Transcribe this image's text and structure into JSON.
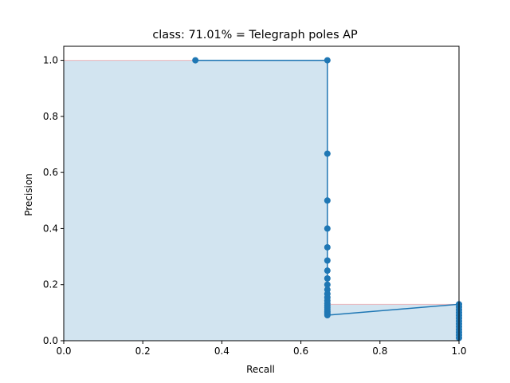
{
  "chart_data": {
    "type": "line",
    "title": "class: 71.01% = Telegraph poles AP",
    "xlabel": "Recall",
    "ylabel": "Precision",
    "xlim": [
      0,
      1
    ],
    "ylim": [
      0,
      1.05
    ],
    "xticks": [
      "0.0",
      "0.2",
      "0.4",
      "0.6",
      "0.8",
      "1.0"
    ],
    "yticks": [
      "0.0",
      "0.2",
      "0.4",
      "0.6",
      "0.8",
      "1.0"
    ],
    "grid": false,
    "legend": "none",
    "series": [
      {
        "values": [
          [
            0.333,
            1.0
          ],
          [
            0.667,
            1.0
          ],
          [
            0.667,
            0.667
          ],
          [
            0.667,
            0.5
          ],
          [
            0.667,
            0.4
          ],
          [
            0.667,
            0.333
          ],
          [
            0.667,
            0.286
          ],
          [
            0.667,
            0.25
          ],
          [
            0.667,
            0.222
          ],
          [
            0.667,
            0.2
          ],
          [
            0.667,
            0.182
          ],
          [
            0.667,
            0.167
          ],
          [
            0.667,
            0.154
          ],
          [
            0.667,
            0.143
          ],
          [
            0.667,
            0.133
          ],
          [
            0.667,
            0.125
          ],
          [
            0.667,
            0.118
          ],
          [
            0.667,
            0.111
          ],
          [
            0.667,
            0.105
          ],
          [
            0.667,
            0.1
          ],
          [
            0.667,
            0.095
          ],
          [
            0.667,
            0.091
          ],
          [
            1.0,
            0.13
          ],
          [
            1.0,
            0.12
          ],
          [
            1.0,
            0.11
          ],
          [
            1.0,
            0.1
          ],
          [
            1.0,
            0.09
          ],
          [
            1.0,
            0.08
          ],
          [
            1.0,
            0.07
          ],
          [
            1.0,
            0.06
          ],
          [
            1.0,
            0.05
          ],
          [
            1.0,
            0.04
          ],
          [
            1.0,
            0.03
          ],
          [
            1.0,
            0.02
          ],
          [
            1.0,
            0.01
          ]
        ]
      }
    ],
    "interpolated_envelope": [
      [
        0.0,
        1.0
      ],
      [
        0.667,
        1.0
      ],
      [
        0.667,
        0.13
      ],
      [
        1.0,
        0.13
      ],
      [
        1.0,
        0.0
      ]
    ],
    "colors": {
      "line": "#1f77b4",
      "fill": "#1f77b4",
      "envelope": "#ff0000"
    }
  }
}
